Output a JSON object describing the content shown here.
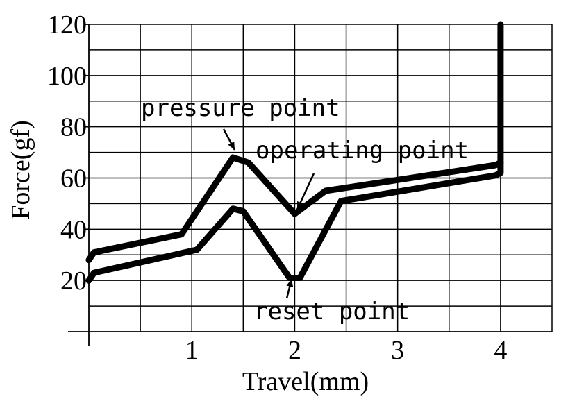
{
  "chart_data": {
    "type": "line",
    "title": "",
    "xlabel": "Travel(mm)",
    "ylabel": "Force(gf)",
    "xlim": [
      0,
      4.5
    ],
    "ylim": [
      0,
      120
    ],
    "grid": true,
    "x_tick_labels": [
      "1",
      "2",
      "3",
      "4"
    ],
    "y_tick_labels": [
      "20",
      "40",
      "60",
      "80",
      "100",
      "120"
    ],
    "series": [
      {
        "points": [
          [
            0,
            28
          ],
          [
            0.05,
            31
          ],
          [
            0.9,
            38
          ],
          [
            1.4,
            68
          ],
          [
            1.55,
            66
          ],
          [
            2.0,
            46
          ],
          [
            2.3,
            55
          ],
          [
            3.95,
            65
          ],
          [
            4.0,
            66
          ],
          [
            4.0,
            120
          ]
        ]
      },
      {
        "points": [
          [
            0,
            20
          ],
          [
            0.05,
            23
          ],
          [
            1.05,
            32
          ],
          [
            1.4,
            48
          ],
          [
            1.5,
            47
          ],
          [
            1.95,
            21
          ],
          [
            2.05,
            21
          ],
          [
            2.45,
            51
          ],
          [
            3.95,
            61
          ],
          [
            4.0,
            62
          ],
          [
            4.0,
            66
          ]
        ]
      }
    ],
    "annotations": [
      {
        "text": "pressure point",
        "target": [
          1.4,
          69
        ],
        "label_anchor": [
          1.0,
          81
        ]
      },
      {
        "text": "operating point",
        "target": [
          2.0,
          46
        ],
        "label_anchor": [
          2.35,
          67
        ]
      },
      {
        "text": "reset point",
        "target": [
          2.0,
          21
        ],
        "label_anchor": [
          2.4,
          8
        ]
      }
    ]
  }
}
